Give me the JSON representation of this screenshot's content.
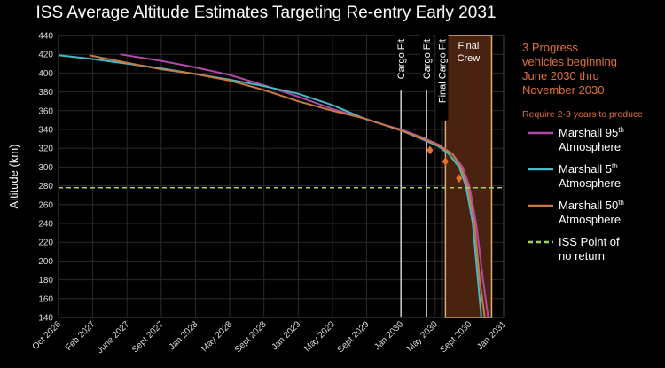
{
  "chart_data": {
    "type": "line",
    "title": "ISS Average Altitude Estimates Targeting Re-entry Early 2031",
    "ylabel": "Altitude (km)",
    "xlabel": "",
    "ylim": [
      140,
      440
    ],
    "yticks": [
      140,
      160,
      180,
      200,
      220,
      240,
      260,
      280,
      300,
      320,
      340,
      360,
      380,
      400,
      420,
      440
    ],
    "xticks": [
      "Oct 2026",
      "Feb 2027",
      "June 2027",
      "Sept 2027",
      "Jan 2028",
      "May 2028",
      "Sept 2028",
      "Jan 2029",
      "May 2029",
      "Sept 2029",
      "Jan 2030",
      "May 2030",
      "Sept 2030",
      "Jan 2031"
    ],
    "grid": true,
    "series": [
      {
        "name": "Marshall 95th Atmosphere",
        "color": "#b04aa8",
        "points": [
          [
            1.8,
            420
          ],
          [
            3,
            413
          ],
          [
            4,
            406
          ],
          [
            5,
            398
          ],
          [
            6,
            387
          ],
          [
            7,
            375
          ],
          [
            8,
            362
          ],
          [
            8.9,
            352
          ],
          [
            9.5,
            345
          ],
          [
            10,
            340
          ],
          [
            10.6,
            332
          ],
          [
            11.1,
            324
          ],
          [
            11.5,
            314
          ],
          [
            11.8,
            300
          ],
          [
            12.0,
            280
          ],
          [
            12.2,
            240
          ],
          [
            12.4,
            180
          ],
          [
            12.55,
            140
          ]
        ]
      },
      {
        "name": "Marshall 5th Atmosphere",
        "color": "#4ab8c8",
        "points": [
          [
            0,
            419
          ],
          [
            1,
            415
          ],
          [
            2,
            410
          ],
          [
            3,
            405
          ],
          [
            4,
            399
          ],
          [
            5,
            393
          ],
          [
            6,
            386
          ],
          [
            7,
            378
          ],
          [
            8,
            366
          ],
          [
            8.9,
            352
          ],
          [
            9.5,
            345
          ],
          [
            10,
            339
          ],
          [
            10.6,
            330
          ],
          [
            11.1,
            322
          ],
          [
            11.4,
            314
          ],
          [
            11.7,
            300
          ],
          [
            11.9,
            280
          ],
          [
            12.1,
            240
          ],
          [
            12.25,
            180
          ],
          [
            12.35,
            140
          ]
        ]
      },
      {
        "name": "Marshall 50th Atmosphere",
        "color": "#c87a40",
        "points": [
          [
            0.9,
            419
          ],
          [
            2,
            411
          ],
          [
            3,
            404
          ],
          [
            4,
            399
          ],
          [
            5,
            392
          ],
          [
            6,
            382
          ],
          [
            7,
            370
          ],
          [
            8,
            360
          ],
          [
            8.9,
            352
          ],
          [
            9.5,
            345
          ],
          [
            10,
            339
          ],
          [
            10.6,
            331
          ],
          [
            11.1,
            323
          ],
          [
            11.5,
            314
          ],
          [
            11.75,
            300
          ],
          [
            11.95,
            280
          ],
          [
            12.15,
            240
          ],
          [
            12.3,
            180
          ],
          [
            12.45,
            140
          ]
        ]
      }
    ],
    "point_of_no_return": {
      "name": "ISS Point of no return",
      "value": 278,
      "color": "#a8d060"
    },
    "markers": [
      [
        10.85,
        318
      ],
      [
        11.3,
        306
      ],
      [
        11.7,
        288
      ]
    ],
    "vlines": [
      {
        "x": 10.0,
        "label": "Cargo Fit"
      },
      {
        "x": 10.75,
        "label": "Cargo Fit"
      },
      {
        "x": 11.2,
        "label": "Final Cargo Fit"
      }
    ],
    "crew_window": {
      "x0": 11.3,
      "x1": 12.65,
      "label_line1": "Final",
      "label_line2": "Crew"
    },
    "annotation": {
      "lines": [
        "3 Progress",
        "vehicles beginning",
        "June 2030 thru",
        "November 2030"
      ],
      "subline": "Require 2-3 years to produce"
    },
    "legend": {
      "position": "right",
      "items": [
        {
          "line1": "Marshall 95",
          "sup": "th",
          "line2": "Atmosphere",
          "color": "#b04aa8",
          "dashed": false
        },
        {
          "line1": "Marshall 5",
          "sup": "th",
          "line2": "Atmosphere",
          "color": "#4ab8c8",
          "dashed": false
        },
        {
          "line1": "Marshall 50",
          "sup": "th",
          "line2": "Atmosphere",
          "color": "#c87a40",
          "dashed": false
        },
        {
          "line1": "ISS Point of",
          "sup": "",
          "line2": "no return",
          "color": "#a8d060",
          "dashed": true
        }
      ]
    }
  }
}
